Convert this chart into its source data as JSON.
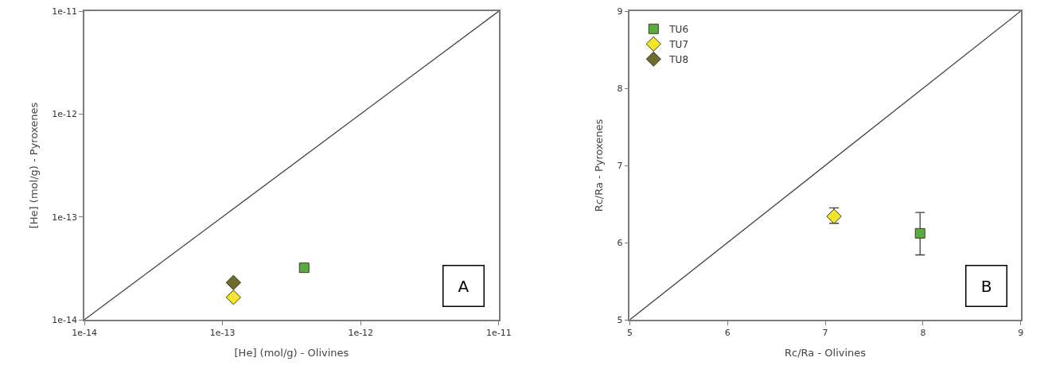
{
  "chart_data": [
    {
      "type": "scatter",
      "xlabel": "[He] (mol/g) - Olivines",
      "ylabel": "[He] (mol/g) - Pyroxenes",
      "log": "xy",
      "xlim": [
        1e-14,
        1e-11
      ],
      "ylim": [
        1e-14,
        1e-11
      ],
      "xticks": [
        {
          "value": 1e-14,
          "label": "1e-14"
        },
        {
          "value": 1e-13,
          "label": "1e-13"
        },
        {
          "value": 1e-12,
          "label": "1e-12"
        },
        {
          "value": 1e-11,
          "label": "1e-11"
        }
      ],
      "yticks": [
        {
          "value": 1e-14,
          "label": "1e-14"
        },
        {
          "value": 1e-13,
          "label": "1e-13"
        },
        {
          "value": 1e-12,
          "label": "1e-12"
        },
        {
          "value": 1e-11,
          "label": "1e-11"
        }
      ],
      "annotations": [
        "A"
      ],
      "series": [
        {
          "type": "line",
          "color": "#404040",
          "marker": "none",
          "x": [
            1e-14,
            1e-11
          ],
          "values": [
            1e-14,
            1e-11
          ]
        },
        {
          "color": "#5aad3c",
          "marker": "square",
          "x": [
            3.9e-13
          ],
          "values": [
            3.2e-14
          ]
        },
        {
          "color": "#f5e52a",
          "marker": "diamond",
          "x": [
            1.2e-13
          ],
          "values": [
            1.65e-14
          ]
        },
        {
          "color": "#6e6a2e",
          "marker": "diamond",
          "x": [
            1.2e-13
          ],
          "values": [
            2.3e-14
          ]
        }
      ]
    },
    {
      "type": "scatter",
      "xlabel": "Rc/Ra - Olivines",
      "ylabel": "Rc/Ra - Pyroxenes",
      "legend": "top left",
      "xlim": [
        5,
        9
      ],
      "ylim": [
        5,
        9
      ],
      "xticks": [
        5,
        6,
        7,
        8,
        9
      ],
      "yticks": [
        5,
        6,
        7,
        8,
        9
      ],
      "annotations": [
        "B"
      ],
      "series": [
        {
          "type": "line",
          "color": "#404040",
          "marker": "none",
          "x": [
            5,
            9
          ],
          "values": [
            5,
            9
          ]
        },
        {
          "name": "TU6",
          "color": "#5aad3c",
          "marker": "square",
          "x": [
            7.97
          ],
          "values": [
            6.12
          ],
          "errors": [
            [
              5.84,
              6.39
            ]
          ]
        },
        {
          "name": "TU7",
          "color": "#f5e52a",
          "marker": "diamond",
          "x": [
            7.09
          ],
          "values": [
            6.34
          ],
          "errors": [
            [
              6.25,
              6.45
            ]
          ]
        },
        {
          "name": "TU8",
          "color": "#6e6a2e",
          "marker": "diamond"
        }
      ]
    }
  ]
}
